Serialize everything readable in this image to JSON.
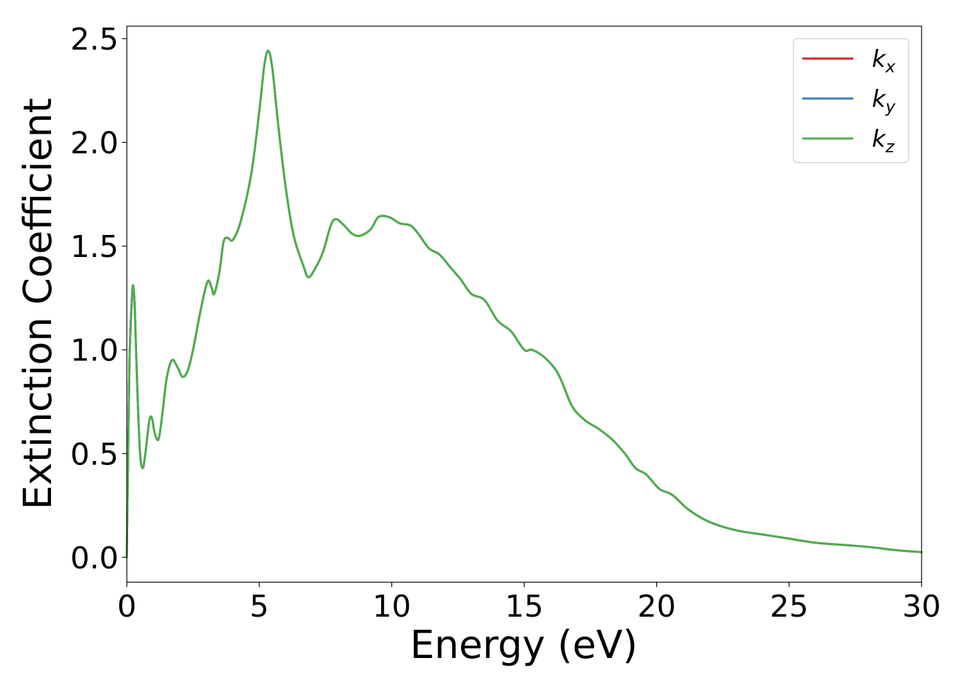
{
  "chart_data": {
    "type": "line",
    "title": "",
    "xlabel": "Energy (eV)",
    "ylabel": "Extinction Coefficient",
    "xlim": [
      0,
      30
    ],
    "ylim": [
      -0.12,
      2.56
    ],
    "xticks": [
      0,
      5,
      10,
      15,
      20,
      25,
      30
    ],
    "xtick_labels": [
      "0",
      "5",
      "10",
      "15",
      "20",
      "25",
      "30"
    ],
    "yticks": [
      0.0,
      0.5,
      1.0,
      1.5,
      2.0,
      2.5
    ],
    "ytick_labels": [
      "0.0",
      "0.5",
      "1.0",
      "1.5",
      "2.0",
      "2.5"
    ],
    "grid": false,
    "legend_position": "top-right",
    "series": [
      {
        "name": "k",
        "subscript": "x",
        "color": "#e41a1c",
        "x": [
          0,
          0.05,
          0.1,
          0.2,
          0.25,
          0.3,
          0.4,
          0.5,
          0.6,
          0.7,
          0.85,
          0.95,
          1.05,
          1.2,
          1.35,
          1.5,
          1.7,
          1.9,
          2.1,
          2.3,
          2.5,
          2.8,
          3.05,
          3.2,
          3.3,
          3.5,
          3.65,
          3.8,
          4.0,
          4.3,
          4.7,
          5.0,
          5.2,
          5.35,
          5.5,
          5.7,
          6.0,
          6.3,
          6.65,
          6.85,
          7.1,
          7.4,
          7.7,
          7.9,
          8.2,
          8.5,
          8.8,
          9.2,
          9.5,
          9.9,
          10.3,
          10.7,
          11.0,
          11.4,
          11.8,
          12.2,
          12.6,
          13.0,
          13.5,
          14.0,
          14.5,
          15.0,
          15.3,
          15.8,
          16.3,
          16.8,
          17.3,
          17.8,
          18.3,
          18.8,
          19.2,
          19.6,
          20.1,
          20.6,
          21.2,
          22.0,
          23.0,
          24.0,
          25.0,
          26.0,
          27.0,
          28.0,
          29.0,
          30.0
        ],
        "values": [
          0.0,
          0.5,
          0.95,
          1.27,
          1.3,
          1.2,
          0.8,
          0.5,
          0.43,
          0.5,
          0.66,
          0.67,
          0.6,
          0.57,
          0.7,
          0.86,
          0.95,
          0.92,
          0.87,
          0.9,
          1.0,
          1.2,
          1.33,
          1.3,
          1.27,
          1.38,
          1.52,
          1.54,
          1.53,
          1.62,
          1.85,
          2.15,
          2.38,
          2.44,
          2.35,
          2.1,
          1.78,
          1.55,
          1.41,
          1.35,
          1.39,
          1.47,
          1.6,
          1.63,
          1.6,
          1.56,
          1.55,
          1.58,
          1.64,
          1.64,
          1.61,
          1.6,
          1.56,
          1.49,
          1.46,
          1.4,
          1.34,
          1.27,
          1.24,
          1.14,
          1.09,
          1.0,
          1.0,
          0.96,
          0.88,
          0.73,
          0.66,
          0.62,
          0.57,
          0.5,
          0.43,
          0.4,
          0.33,
          0.3,
          0.23,
          0.17,
          0.13,
          0.11,
          0.09,
          0.07,
          0.06,
          0.05,
          0.035,
          0.025
        ]
      },
      {
        "name": "k",
        "subscript": "y",
        "color": "#377eb8",
        "x": [
          0,
          0.05,
          0.1,
          0.2,
          0.25,
          0.3,
          0.4,
          0.5,
          0.6,
          0.7,
          0.85,
          0.95,
          1.05,
          1.2,
          1.35,
          1.5,
          1.7,
          1.9,
          2.1,
          2.3,
          2.5,
          2.8,
          3.05,
          3.2,
          3.3,
          3.5,
          3.65,
          3.8,
          4.0,
          4.3,
          4.7,
          5.0,
          5.2,
          5.35,
          5.5,
          5.7,
          6.0,
          6.3,
          6.65,
          6.85,
          7.1,
          7.4,
          7.7,
          7.9,
          8.2,
          8.5,
          8.8,
          9.2,
          9.5,
          9.9,
          10.3,
          10.7,
          11.0,
          11.4,
          11.8,
          12.2,
          12.6,
          13.0,
          13.5,
          14.0,
          14.5,
          15.0,
          15.3,
          15.8,
          16.3,
          16.8,
          17.3,
          17.8,
          18.3,
          18.8,
          19.2,
          19.6,
          20.1,
          20.6,
          21.2,
          22.0,
          23.0,
          24.0,
          25.0,
          26.0,
          27.0,
          28.0,
          29.0,
          30.0
        ],
        "values": [
          0.0,
          0.5,
          0.95,
          1.27,
          1.3,
          1.2,
          0.8,
          0.5,
          0.43,
          0.5,
          0.66,
          0.67,
          0.6,
          0.57,
          0.7,
          0.86,
          0.95,
          0.92,
          0.87,
          0.9,
          1.0,
          1.2,
          1.33,
          1.3,
          1.27,
          1.38,
          1.52,
          1.54,
          1.53,
          1.62,
          1.85,
          2.15,
          2.38,
          2.44,
          2.35,
          2.1,
          1.78,
          1.55,
          1.41,
          1.35,
          1.39,
          1.47,
          1.6,
          1.63,
          1.6,
          1.56,
          1.55,
          1.58,
          1.64,
          1.64,
          1.61,
          1.6,
          1.56,
          1.49,
          1.46,
          1.4,
          1.34,
          1.27,
          1.24,
          1.14,
          1.09,
          1.0,
          1.0,
          0.96,
          0.88,
          0.73,
          0.66,
          0.62,
          0.57,
          0.5,
          0.43,
          0.4,
          0.33,
          0.3,
          0.23,
          0.17,
          0.13,
          0.11,
          0.09,
          0.07,
          0.06,
          0.05,
          0.035,
          0.025
        ]
      },
      {
        "name": "k",
        "subscript": "z",
        "color": "#4daf4a",
        "x": [
          0,
          0.05,
          0.1,
          0.2,
          0.25,
          0.3,
          0.4,
          0.5,
          0.6,
          0.7,
          0.85,
          0.95,
          1.05,
          1.2,
          1.35,
          1.5,
          1.7,
          1.9,
          2.1,
          2.3,
          2.5,
          2.8,
          3.05,
          3.2,
          3.3,
          3.5,
          3.65,
          3.8,
          4.0,
          4.3,
          4.7,
          5.0,
          5.2,
          5.35,
          5.5,
          5.7,
          6.0,
          6.3,
          6.65,
          6.85,
          7.1,
          7.4,
          7.7,
          7.9,
          8.2,
          8.5,
          8.8,
          9.2,
          9.5,
          9.9,
          10.3,
          10.7,
          11.0,
          11.4,
          11.8,
          12.2,
          12.6,
          13.0,
          13.5,
          14.0,
          14.5,
          15.0,
          15.3,
          15.8,
          16.3,
          16.8,
          17.3,
          17.8,
          18.3,
          18.8,
          19.2,
          19.6,
          20.1,
          20.6,
          21.2,
          22.0,
          23.0,
          24.0,
          25.0,
          26.0,
          27.0,
          28.0,
          29.0,
          30.0
        ],
        "values": [
          0.0,
          0.5,
          0.95,
          1.27,
          1.3,
          1.2,
          0.8,
          0.5,
          0.43,
          0.5,
          0.66,
          0.67,
          0.6,
          0.57,
          0.7,
          0.86,
          0.95,
          0.92,
          0.87,
          0.9,
          1.0,
          1.2,
          1.33,
          1.3,
          1.27,
          1.38,
          1.52,
          1.54,
          1.53,
          1.62,
          1.85,
          2.15,
          2.38,
          2.44,
          2.35,
          2.1,
          1.78,
          1.55,
          1.41,
          1.35,
          1.39,
          1.47,
          1.6,
          1.63,
          1.6,
          1.56,
          1.55,
          1.58,
          1.64,
          1.64,
          1.61,
          1.6,
          1.56,
          1.49,
          1.46,
          1.4,
          1.34,
          1.27,
          1.24,
          1.14,
          1.09,
          1.0,
          1.0,
          0.96,
          0.88,
          0.73,
          0.66,
          0.62,
          0.57,
          0.5,
          0.43,
          0.4,
          0.33,
          0.3,
          0.23,
          0.17,
          0.13,
          0.11,
          0.09,
          0.07,
          0.06,
          0.05,
          0.035,
          0.025
        ]
      }
    ]
  }
}
